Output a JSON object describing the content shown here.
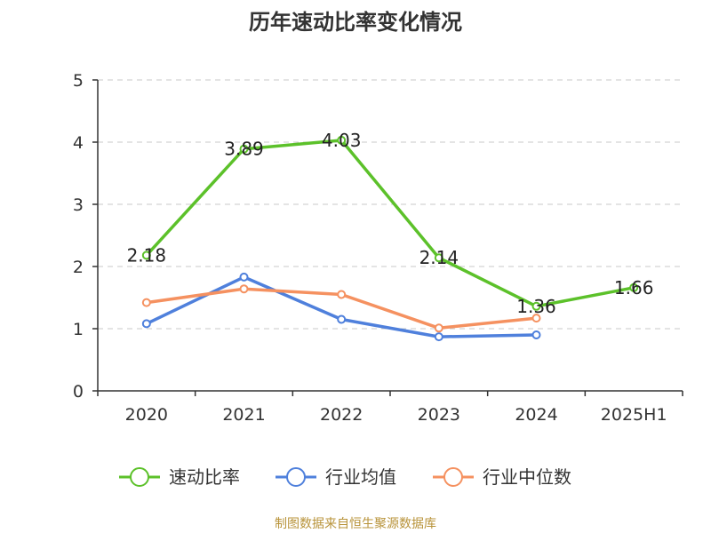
{
  "chart_data": {
    "type": "line",
    "title": "历年速动比率变化情况",
    "categories": [
      "2020",
      "2021",
      "2022",
      "2023",
      "2024",
      "2025H1"
    ],
    "ylim": [
      0,
      5
    ],
    "yticks": [
      "0",
      "1",
      "2",
      "3",
      "4",
      "5"
    ],
    "grid": true,
    "legend_position": "bottom",
    "series": [
      {
        "name": "速动比率",
        "color": "#5cc12a",
        "values": [
          2.18,
          3.89,
          4.03,
          2.14,
          1.36,
          1.66
        ],
        "labels": [
          "2.18",
          "3.89",
          "4.03",
          "2.14",
          "1.36",
          "1.66"
        ]
      },
      {
        "name": "行业均值",
        "color": "#4f80dc",
        "values": [
          1.08,
          1.83,
          1.15,
          0.87,
          0.9,
          null
        ]
      },
      {
        "name": "行业中位数",
        "color": "#f59160",
        "values": [
          1.42,
          1.64,
          1.55,
          1.01,
          1.17,
          null
        ]
      }
    ]
  },
  "source_text": "制图数据来自恒生聚源数据库"
}
